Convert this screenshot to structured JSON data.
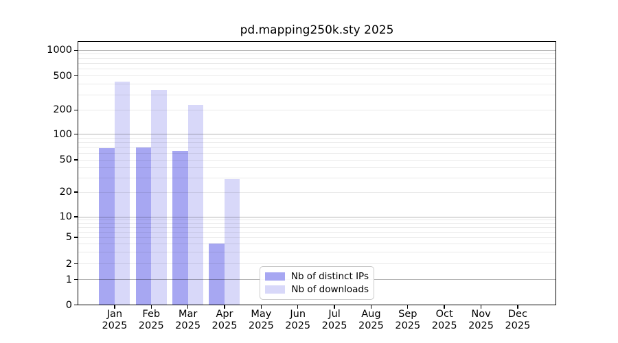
{
  "title": "pd.mapping250k.sty 2025",
  "chart_data": {
    "type": "bar",
    "title": "pd.mapping250k.sty 2025",
    "categories": [
      "Jan 2025",
      "Feb 2025",
      "Mar 2025",
      "Apr 2025",
      "May 2025",
      "Jun 2025",
      "Jul 2025",
      "Aug 2025",
      "Sep 2025",
      "Oct 2025",
      "Nov 2025",
      "Dec 2025"
    ],
    "series": [
      {
        "name": "Nb of distinct IPs",
        "color": "#a7a7f2",
        "values": [
          68,
          70,
          64,
          4,
          0,
          0,
          0,
          0,
          0,
          0,
          0,
          0
        ]
      },
      {
        "name": "Nb of downloads",
        "color": "#d8d8f9",
        "values": [
          430,
          345,
          230,
          29,
          0,
          0,
          0,
          0,
          0,
          0,
          0,
          0
        ]
      }
    ],
    "y_axis": {
      "scale": "log",
      "tick_values": [
        0,
        1,
        2,
        5,
        10,
        20,
        50,
        100,
        200,
        500,
        1000
      ],
      "range": [
        0,
        1300
      ]
    },
    "grid": {
      "major": "on",
      "minor": "on"
    },
    "legend": {
      "position": "inside-bottom-center"
    }
  }
}
